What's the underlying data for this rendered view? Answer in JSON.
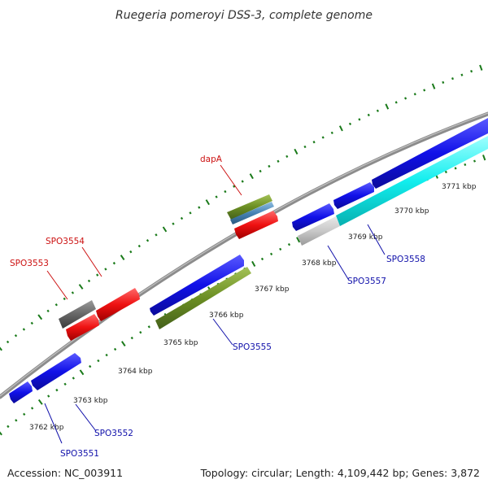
{
  "title": "Ruegeria pomeroyi DSS-3, complete genome",
  "footer": {
    "accession": "Accession: NC_003911",
    "topology": "Topology: circular; Length: 4,109,442 bp; Genes: 3,872"
  },
  "colors": {
    "backbone": "#8c8c8c",
    "dots": "#1a7a1a",
    "cds_forward": "#1010e8",
    "cds_reverse_red": "#ee1111",
    "gray_feature": "#666666",
    "olive_feature": "#6b8e23",
    "steel_feature": "#4682b4",
    "cyan_feature": "#11eeee",
    "light_gray_feature": "#c8c8c8",
    "forward_label": "#1010aa",
    "reverse_label": "#cc1111"
  },
  "tick_labels": [
    "3762 kbp",
    "3763 kbp",
    "3764 kbp",
    "3765 kbp",
    "3766 kbp",
    "3767 kbp",
    "3768 kbp",
    "3769 kbp",
    "3770 kbp",
    "3771 kbp"
  ],
  "gene_labels": {
    "SPO3551": "SPO3551",
    "SPO3552": "SPO3552",
    "SPO3553": "SPO3553",
    "SPO3554": "SPO3554",
    "SPO3555": "SPO3555",
    "dapA": "dapA",
    "SPO3557": "SPO3557",
    "SPO3558": "SPO3558"
  }
}
